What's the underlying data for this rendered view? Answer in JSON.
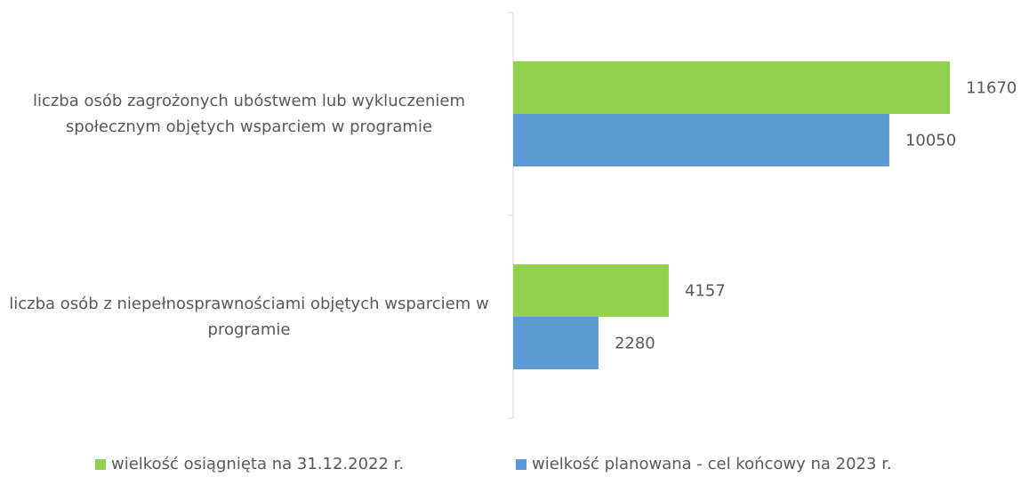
{
  "chart_data": {
    "type": "hbar",
    "categories": [
      "liczba osób zagrożonych ubóstwem lub wykluczeniem społecznym objętych wsparciem w programie",
      "liczba osób z niepełnosprawnościami objętych wsparciem w programie"
    ],
    "series": [
      {
        "name": "wielkość osiągnięta na 31.12.2022 r.",
        "color": "#92d050",
        "values": [
          11670,
          4157
        ]
      },
      {
        "name": "wielkość planowana - cel końcowy na 2023 r.",
        "color": "#5b9bd5",
        "values": [
          10050,
          2280
        ]
      }
    ],
    "xlim": [
      0,
      12000
    ],
    "legend": "bottom"
  }
}
